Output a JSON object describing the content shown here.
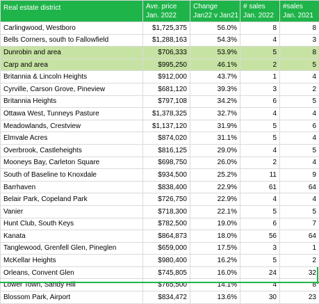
{
  "header": {
    "district": "Real estate district",
    "price_1": "Ave. price",
    "price_2": "Jan. 2022",
    "change_1": "Change",
    "change_2": "Jan22 v Jan21",
    "sales22_1": "# sales",
    "sales22_2": "Jan. 2022",
    "sales21_1": "#sales",
    "sales21_2": "Jan. 2021"
  },
  "colors": {
    "header_bg": "#1fb44a",
    "highlight_row": "#c7e3a4",
    "header_text": "#ffffff"
  },
  "rows": [
    {
      "district": "Carlingwood, Westboro",
      "price": "$1,725,375",
      "change": "56.0%",
      "sales22": "8",
      "sales21": "8"
    },
    {
      "district": "Bells Corners, south to Fallowfield",
      "price": "$1,288,163",
      "change": "54.3%",
      "sales22": "4",
      "sales21": "3"
    },
    {
      "district": "Dunrobin and area",
      "price": "$706,333",
      "change": "53.9%",
      "sales22": "5",
      "sales21": "8"
    },
    {
      "district": "Carp and area",
      "price": "$995,250",
      "change": "46.1%",
      "sales22": "2",
      "sales21": "5"
    },
    {
      "district": "Britannia & Lincoln Heights",
      "price": "$912,000",
      "change": "43.7%",
      "sales22": "1",
      "sales21": "4"
    },
    {
      "district": "Cyrville, Carson Grove, Pineview",
      "price": "$681,120",
      "change": "39.3%",
      "sales22": "3",
      "sales21": "2"
    },
    {
      "district": "Britannia Heights",
      "price": "$797,108",
      "change": "34.2%",
      "sales22": "6",
      "sales21": "5"
    },
    {
      "district": "Ottawa West, Tunneys Pasture",
      "price": "$1,378,325",
      "change": "32.7%",
      "sales22": "4",
      "sales21": "4"
    },
    {
      "district": "Meadowlands, Crestview",
      "price": "$1,137,120",
      "change": "31.9%",
      "sales22": "5",
      "sales21": "6"
    },
    {
      "district": "Elmvale Acres",
      "price": "$874,020",
      "change": "31.1%",
      "sales22": "5",
      "sales21": "4"
    },
    {
      "district": "Overbrook, Castleheights",
      "price": "$816,125",
      "change": "29.0%",
      "sales22": "4",
      "sales21": "5"
    },
    {
      "district": "Mooneys Bay, Carleton Square",
      "price": "$698,750",
      "change": "26.0%",
      "sales22": "2",
      "sales21": "4"
    },
    {
      "district": "South of Baseline to Knoxdale",
      "price": "$934,500",
      "change": "25.2%",
      "sales22": "11",
      "sales21": "9"
    },
    {
      "district": "Barrhaven",
      "price": "$838,400",
      "change": "22.9%",
      "sales22": "61",
      "sales21": "64"
    },
    {
      "district": "Belair Park, Copeland Park",
      "price": "$726,750",
      "change": "22.9%",
      "sales22": "4",
      "sales21": "4"
    },
    {
      "district": "Vanier",
      "price": "$718,300",
      "change": "22.1%",
      "sales22": "5",
      "sales21": "5"
    },
    {
      "district": "Hunt Club, South Keys",
      "price": "$782,500",
      "change": "19.0%",
      "sales22": "6",
      "sales21": "7"
    },
    {
      "district": "Kanata",
      "price": "$864,873",
      "change": "18.0%",
      "sales22": "56",
      "sales21": "64"
    },
    {
      "district": "Tanglewood, Grenfell Glen, Pineglen",
      "price": "$659,000",
      "change": "17.5%",
      "sales22": "3",
      "sales21": "1"
    },
    {
      "district": "McKellar Heights",
      "price": "$980,400",
      "change": "16.2%",
      "sales22": "5",
      "sales21": "2"
    },
    {
      "district": "Orleans, Convent Glen",
      "price": "$745,805",
      "change": "16.0%",
      "sales22": "24",
      "sales21": "32"
    },
    {
      "district": "Lower Town, Sandy Hill",
      "price": "$765,500",
      "change": "14.1%",
      "sales22": "4",
      "sales21": "8"
    },
    {
      "district": "Blossom Park, Airport",
      "price": "$834,472",
      "change": "13.6%",
      "sales22": "30",
      "sales21": "23"
    }
  ]
}
